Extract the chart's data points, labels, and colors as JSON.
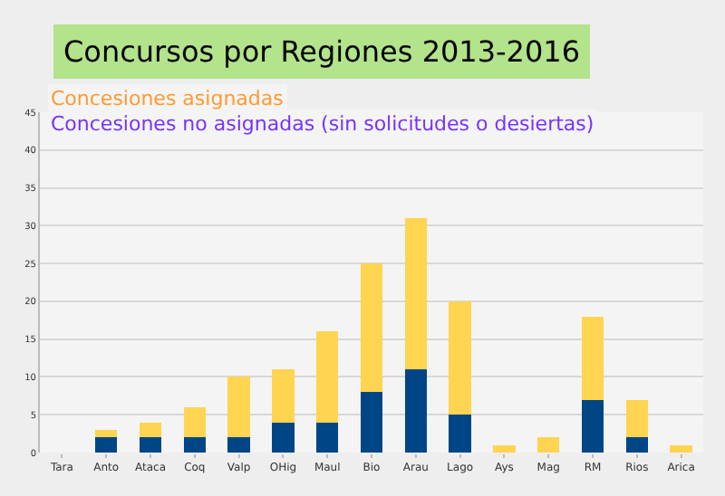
{
  "chart_data": {
    "type": "bar",
    "title": "Concursos por Regiones 2013-2016",
    "annotations": [
      "Concesiones asignadas",
      "Concesiones no asignadas (sin solicitudes o desiertas)"
    ],
    "categories": [
      "Tara",
      "Anto",
      "Ataca",
      "Coq",
      "Valp",
      "OHig",
      "Maul",
      "Bio",
      "Arau",
      "Lago",
      "Ays",
      "Mag",
      "RM",
      "Rios",
      "Arica"
    ],
    "stacked": true,
    "series": [
      {
        "color": "#004586",
        "values": [
          0,
          2,
          2,
          2,
          2,
          4,
          4,
          8,
          11,
          5,
          0,
          0,
          7,
          2,
          0
        ]
      },
      {
        "color": "#ffd450",
        "values": [
          0,
          1,
          2,
          4,
          8,
          7,
          12,
          17,
          20,
          15,
          1,
          2,
          11,
          5,
          1
        ]
      }
    ],
    "ylim": [
      0,
      45
    ],
    "yticks": [
      0,
      5,
      10,
      15,
      20,
      25,
      30,
      35,
      40,
      45
    ],
    "grid": "y"
  }
}
